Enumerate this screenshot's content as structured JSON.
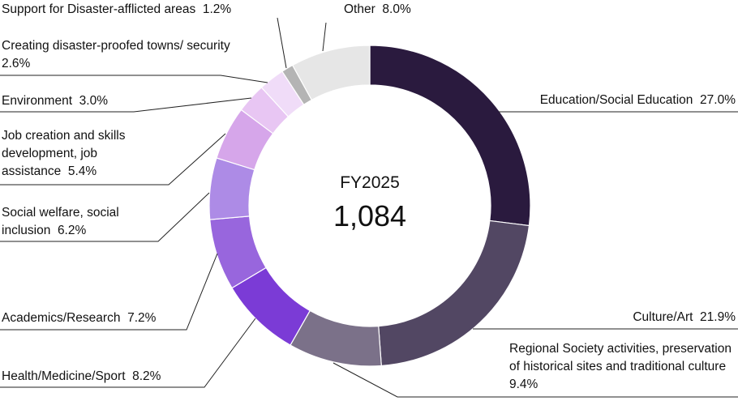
{
  "chart_data": {
    "type": "pie",
    "donut": true,
    "center_title": "FY2025",
    "center_value": "1,084",
    "unit": "%",
    "slices": [
      {
        "label": "Education/Social Education",
        "value": 27.0,
        "value_text": "27.0%",
        "color": "#2a1a3e"
      },
      {
        "label": "Culture/Art",
        "value": 21.9,
        "value_text": "21.9%",
        "color": "#524763"
      },
      {
        "label": "Regional Society activities, preservation of historical sites and traditional culture",
        "value": 9.4,
        "value_text": "9.4%",
        "color": "#7b7189"
      },
      {
        "label": "Health/Medicine/Sport",
        "value": 8.2,
        "value_text": "8.2%",
        "color": "#7b3bd6"
      },
      {
        "label": "Academics/Research",
        "value": 7.2,
        "value_text": "7.2%",
        "color": "#9866dd"
      },
      {
        "label": "Social welfare, social inclusion",
        "value": 6.2,
        "value_text": "6.2%",
        "color": "#ad8be6"
      },
      {
        "label": "Job creation and skills development, job assistance",
        "value": 5.4,
        "value_text": "5.4%",
        "color": "#d6a6ea"
      },
      {
        "label": "Environment",
        "value": 3.0,
        "value_text": "3.0%",
        "color": "#e8c6f3"
      },
      {
        "label": "Creating disaster-proofed towns/ security",
        "value": 2.6,
        "value_text": "2.6%",
        "color": "#f0dcf8"
      },
      {
        "label": "Support for Disaster-afflicted areas",
        "value": 1.2,
        "value_text": "1.2%",
        "color": "#b4b4b4"
      },
      {
        "label": "Other",
        "value": 8.0,
        "value_text": "8.0%",
        "color": "#e6e6e6"
      }
    ]
  }
}
